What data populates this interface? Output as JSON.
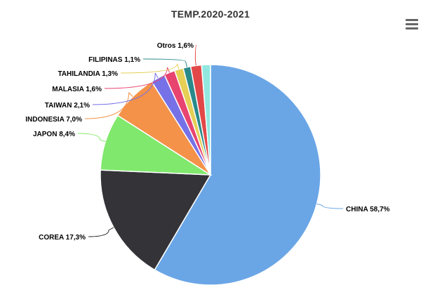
{
  "menu": {
    "icon": "hamburger-menu-icon"
  },
  "chart_data": {
    "type": "pie",
    "title": "TEMP.2020-2021",
    "legend": "none",
    "slices": [
      {
        "name": "CHINA",
        "value_label": "58,7%",
        "value": 58.7,
        "color": "#6aa6e6"
      },
      {
        "name": "COREA",
        "value_label": "17,3%",
        "value": 17.3,
        "color": "#333338"
      },
      {
        "name": "JAPON",
        "value_label": "8,4%",
        "value": 8.4,
        "color": "#80e86c"
      },
      {
        "name": "INDONESIA",
        "value_label": "7,0%",
        "value": 7.0,
        "color": "#f39248"
      },
      {
        "name": "TAIWAN",
        "value_label": "2,1%",
        "value": 2.1,
        "color": "#7771e8"
      },
      {
        "name": "MALASIA",
        "value_label": "1,6%",
        "value": 1.6,
        "color": "#e84470"
      },
      {
        "name": "TAHILANDIA",
        "value_label": "1,3%",
        "value": 1.3,
        "color": "#e5cf55"
      },
      {
        "name": "FILIPINAS",
        "value_label": "1,1%",
        "value": 1.1,
        "color": "#2a8a8a"
      },
      {
        "name": "Otros",
        "value_label": "1,6%",
        "value": 1.6,
        "color": "#e24848"
      },
      {
        "name": "",
        "value_label": "",
        "value": 1.3,
        "color": "#92e8e0"
      }
    ]
  }
}
